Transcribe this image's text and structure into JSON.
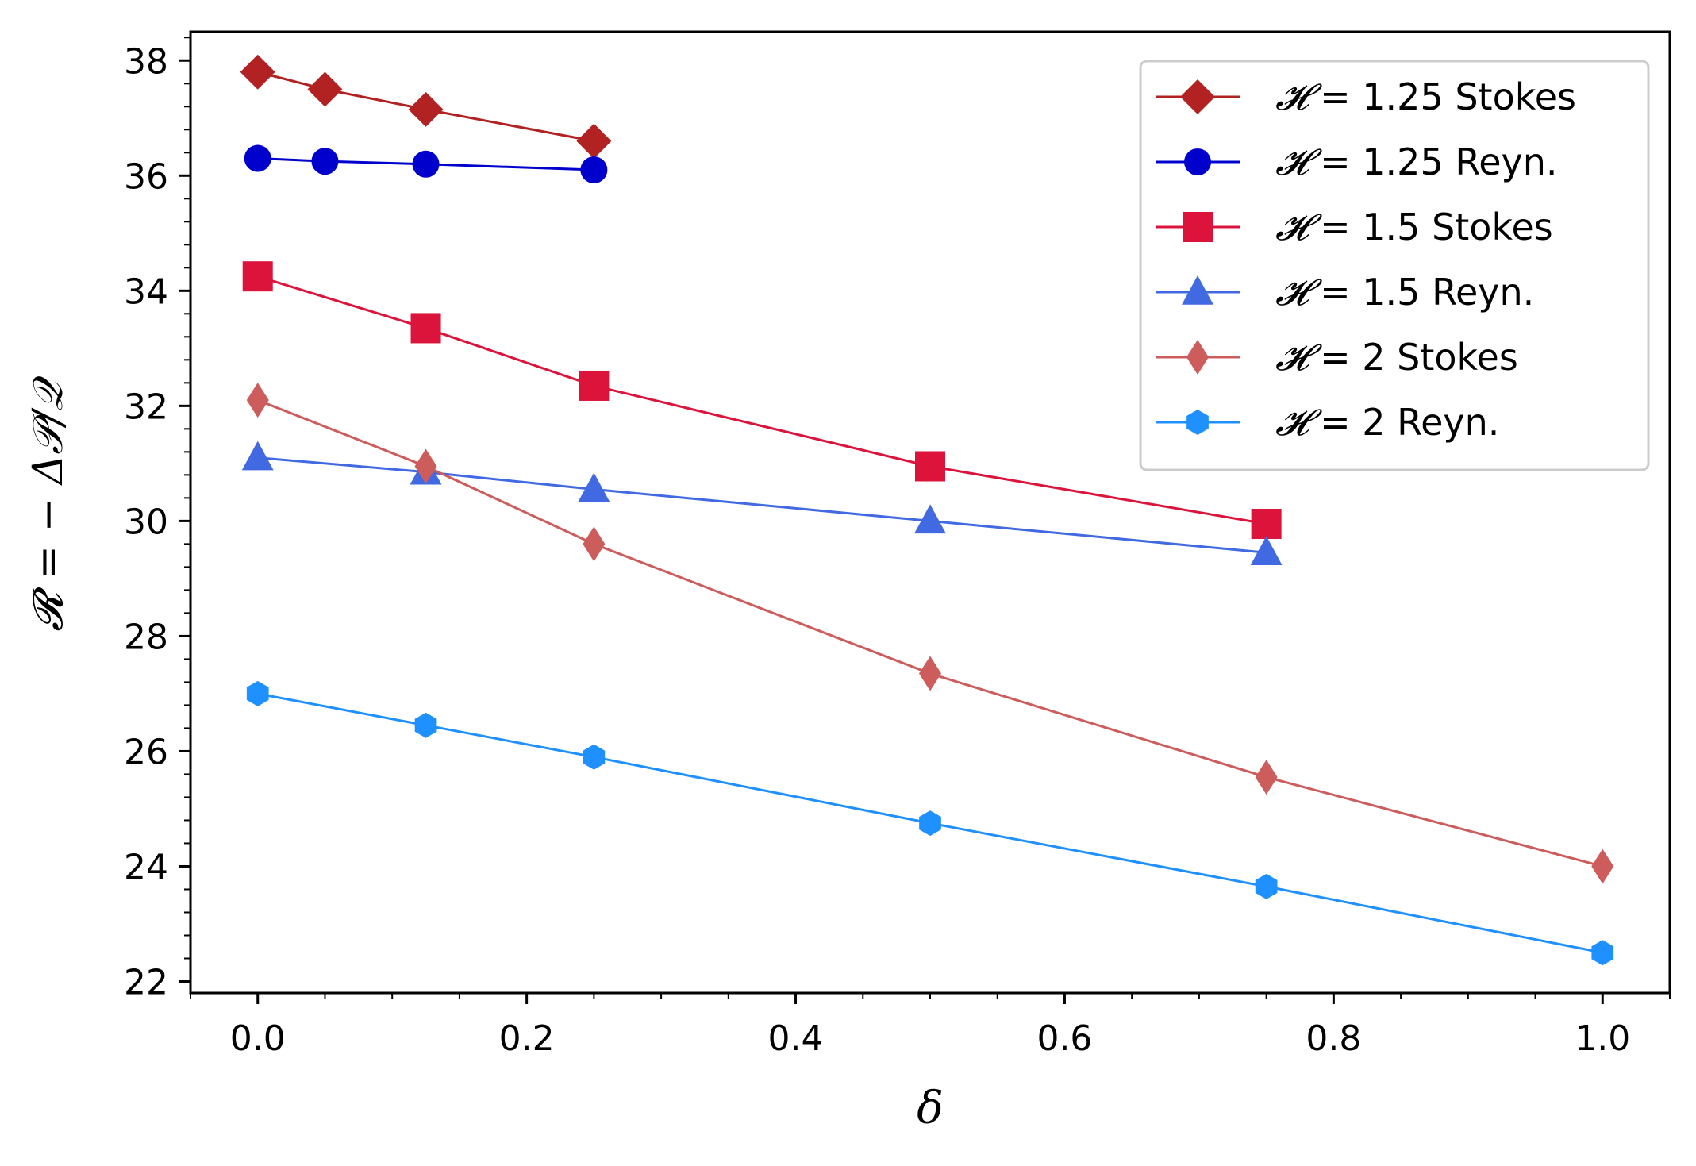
{
  "chart_data": {
    "type": "line",
    "title": "",
    "xlabel": "δ",
    "ylabel": "𝓡 = − Δ𝒫/𝒬",
    "xlim": [
      -0.05,
      1.05
    ],
    "ylim": [
      21.8,
      38.5
    ],
    "xticks": [
      0.0,
      0.2,
      0.4,
      0.6,
      0.8,
      1.0
    ],
    "xtick_labels": [
      "0.0",
      "0.2",
      "0.4",
      "0.6",
      "0.8",
      "1.0"
    ],
    "yticks": [
      22,
      24,
      26,
      28,
      30,
      32,
      34,
      36,
      38
    ],
    "ytick_labels": [
      "22",
      "24",
      "26",
      "28",
      "30",
      "32",
      "34",
      "36",
      "38"
    ],
    "grid": false,
    "legend_position": "top-right",
    "series": [
      {
        "name": "𝓗 = 1.25 Stokes",
        "legend_symbol": "𝓗",
        "legend_rest": " = 1.25 Stokes",
        "color": "#b22222",
        "marker": "diamond",
        "x": [
          0.0,
          0.05,
          0.125,
          0.25
        ],
        "y": [
          37.8,
          37.5,
          37.15,
          36.6
        ]
      },
      {
        "name": "𝓗 = 1.25 Reyn.",
        "legend_symbol": "𝓗",
        "legend_rest": " = 1.25 Reyn.",
        "color": "#0000cd",
        "marker": "circle",
        "x": [
          0.0,
          0.05,
          0.125,
          0.25
        ],
        "y": [
          36.3,
          36.25,
          36.2,
          36.1
        ]
      },
      {
        "name": "𝓗 = 1.5 Stokes",
        "legend_symbol": "𝓗",
        "legend_rest": " = 1.5 Stokes",
        "color": "#dc143c",
        "marker": "square",
        "x": [
          0.0,
          0.125,
          0.25,
          0.5,
          0.75
        ],
        "y": [
          34.25,
          33.35,
          32.35,
          30.95,
          29.95
        ]
      },
      {
        "name": "𝓗 = 1.5 Reyn.",
        "legend_symbol": "𝓗",
        "legend_rest": " = 1.5 Reyn.",
        "color": "#4169e1",
        "marker": "triangle",
        "x": [
          0.0,
          0.125,
          0.25,
          0.5,
          0.75
        ],
        "y": [
          31.1,
          30.85,
          30.55,
          30.0,
          29.45
        ]
      },
      {
        "name": "𝓗 = 2 Stokes",
        "legend_symbol": "𝓗",
        "legend_rest": " = 2 Stokes",
        "color": "#cd5c5c",
        "marker": "thin_diamond",
        "x": [
          0.0,
          0.125,
          0.25,
          0.5,
          0.75,
          1.0
        ],
        "y": [
          32.1,
          30.95,
          29.6,
          27.35,
          25.55,
          24.0
        ]
      },
      {
        "name": "𝓗 = 2 Reyn.",
        "legend_symbol": "𝓗",
        "legend_rest": " = 2 Reyn.",
        "color": "#1e90ff",
        "marker": "hexagon",
        "x": [
          0.0,
          0.125,
          0.25,
          0.5,
          0.75,
          1.0
        ],
        "y": [
          27.0,
          26.45,
          25.9,
          24.75,
          23.65,
          22.5
        ]
      }
    ]
  }
}
